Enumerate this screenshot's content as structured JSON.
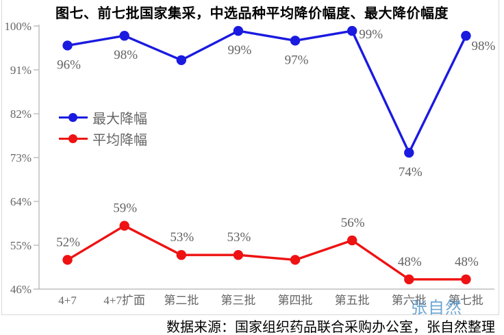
{
  "title": "图七、前七批国家集采，中选品种平均降价幅度、最大降价幅度",
  "source_note": "数据来源：国家组织药品联合采购办公室，张自然整理",
  "watermark": "张自然",
  "colors": {
    "max_series_blue": "#1A1AE0",
    "avg_series_red": "#EE1212",
    "label_gray": "#666666",
    "axis_gray": "#BFBFBF",
    "border_gray": "#D9D9D9",
    "watermark_blue": "#5296CC"
  },
  "chart_data": {
    "type": "line",
    "title": "图七、前七批国家集采，中选品种平均降价幅度、最大降价幅度",
    "xlabel": "",
    "ylabel": "",
    "categories": [
      "4+7",
      "4+7扩面",
      "第二批",
      "第三批",
      "第四批",
      "第五批",
      "第六批",
      "第七批"
    ],
    "y_tick_labels": [
      "100%",
      "91%",
      "82%",
      "73%",
      "64%",
      "55%",
      "46%"
    ],
    "y_tick_values": [
      100,
      91,
      82,
      73,
      64,
      55,
      46
    ],
    "ylim": [
      46,
      100
    ],
    "grid": false,
    "legend_position": "upper-left-inside",
    "series": [
      {
        "name": "最大降幅",
        "color": "#1A1AE0",
        "values": [
          96,
          98,
          93,
          99,
          97,
          99,
          74,
          98
        ],
        "data_labels": [
          "96%",
          "98%",
          "",
          "99%",
          "97%",
          "99%",
          "74%",
          "98%"
        ]
      },
      {
        "name": "平均降幅",
        "color": "#EE1212",
        "values": [
          52,
          59,
          53,
          53,
          52,
          56,
          48,
          48
        ],
        "data_labels": [
          "52%",
          "59%",
          "53%",
          "53%",
          "",
          "56%",
          "48%",
          "48%"
        ]
      }
    ]
  }
}
